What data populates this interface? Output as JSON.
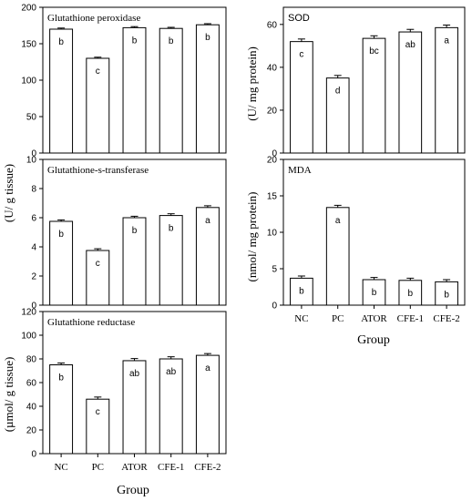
{
  "figure": {
    "left_ylabels": [
      "(U/ g tissue)",
      "(µmol/ g tissue)"
    ],
    "right_ylabels": [
      "(U/ mg protein)",
      "(nmol/ mg protein)"
    ],
    "xlabel_left": "Group",
    "xlabel_right": "Group"
  },
  "chart_data": [
    {
      "type": "bar",
      "title": "Glutathione peroxidase",
      "categories": [
        "NC",
        "PC",
        "ATOR",
        "CFE-1",
        "CFE-2"
      ],
      "values": [
        170,
        130,
        172,
        171,
        176
      ],
      "errors": [
        1.5,
        1.5,
        1.5,
        1.5,
        1.5
      ],
      "letters": [
        "b",
        "c",
        "b",
        "b",
        "b"
      ],
      "ylim": [
        0,
        200
      ],
      "yticks": [
        0,
        50,
        100,
        150,
        200
      ],
      "xlabel": "",
      "ylabel": "(U/ g tissue)"
    },
    {
      "type": "bar",
      "title": "Glutathione-s-transferase",
      "categories": [
        "NC",
        "PC",
        "ATOR",
        "CFE-1",
        "CFE-2"
      ],
      "values": [
        5.75,
        3.75,
        6.0,
        6.15,
        6.7
      ],
      "errors": [
        0.1,
        0.12,
        0.1,
        0.12,
        0.12
      ],
      "letters": [
        "b",
        "c",
        "b",
        "b",
        "a"
      ],
      "ylim": [
        0,
        10
      ],
      "yticks": [
        0,
        2,
        4,
        6,
        8,
        10
      ],
      "xlabel": "",
      "ylabel": ""
    },
    {
      "type": "bar",
      "title": "Glutathione reductase",
      "categories": [
        "NC",
        "PC",
        "ATOR",
        "CFE-1",
        "CFE-2"
      ],
      "values": [
        75,
        46,
        78.5,
        80,
        83
      ],
      "errors": [
        1.5,
        1.8,
        1.8,
        1.8,
        1.5
      ],
      "letters": [
        "b",
        "c",
        "ab",
        "ab",
        "a"
      ],
      "ylim": [
        0,
        120
      ],
      "yticks": [
        0,
        20,
        40,
        60,
        80,
        100,
        120
      ],
      "xlabel": "Group",
      "ylabel": "(µmol/ g tissue)"
    },
    {
      "type": "bar",
      "title": "SOD",
      "categories": [
        "NC",
        "PC",
        "ATOR",
        "CFE-1",
        "CFE-2"
      ],
      "values": [
        52,
        35,
        53.5,
        56.5,
        58.5
      ],
      "errors": [
        1.2,
        1.2,
        1.2,
        1.2,
        1.2
      ],
      "letters": [
        "c",
        "d",
        "bc",
        "ab",
        "a"
      ],
      "ylim": [
        0,
        68
      ],
      "yticks": [
        0,
        20,
        40,
        60
      ],
      "xlabel": "",
      "ylabel": "(U/ mg protein)"
    },
    {
      "type": "bar",
      "title": "MDA",
      "categories": [
        "NC",
        "PC",
        "ATOR",
        "CFE-1",
        "CFE-2"
      ],
      "values": [
        3.7,
        13.4,
        3.5,
        3.4,
        3.2
      ],
      "errors": [
        0.3,
        0.3,
        0.3,
        0.3,
        0.3
      ],
      "letters": [
        "b",
        "a",
        "b",
        "b",
        "b"
      ],
      "ylim": [
        0,
        20
      ],
      "yticks": [
        0,
        5,
        10,
        15,
        20
      ],
      "xlabel": "Group",
      "ylabel": "(nmol/ mg protein)"
    }
  ]
}
